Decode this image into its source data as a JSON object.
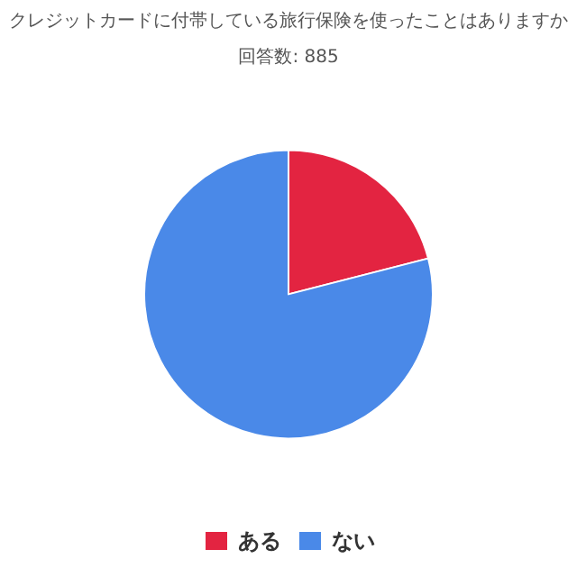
{
  "chart_data": {
    "type": "pie",
    "title": "クレジットカードに付帯している旅行保険を使ったことはありますか",
    "subtitle": "回答数: 885",
    "categories": [
      "ある",
      "ない"
    ],
    "values": [
      21,
      79
    ],
    "colors": [
      "#e32441",
      "#4a89e8"
    ],
    "legend": "bottom"
  }
}
